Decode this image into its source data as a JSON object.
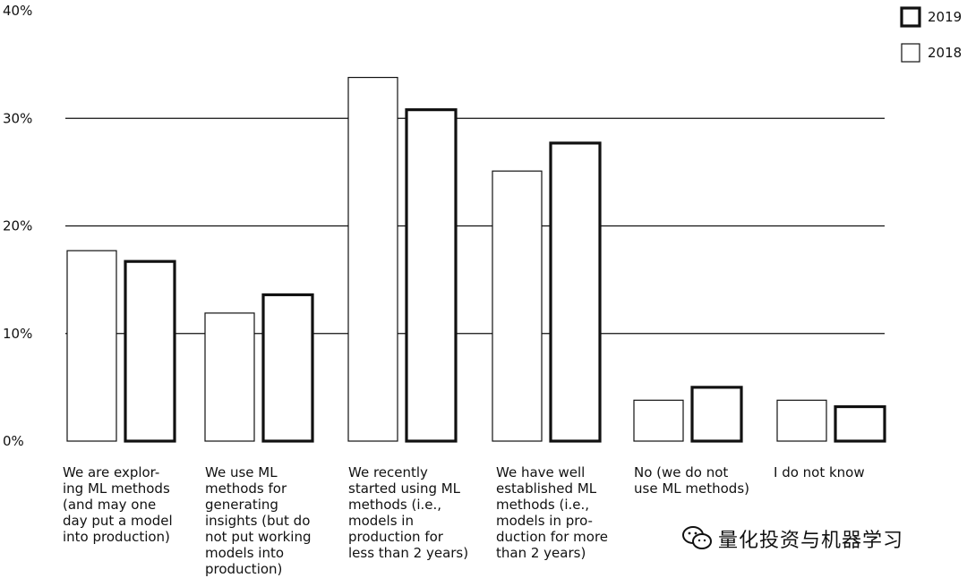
{
  "chart_data": {
    "type": "bar",
    "title": "",
    "xlabel": "",
    "ylabel": "",
    "ylim": [
      0,
      40
    ],
    "yticks": [
      "0%",
      "10%",
      "20%",
      "30%",
      "40%"
    ],
    "categories": [
      "We are explor-\ning ML methods\n(and may one\nday put a model\ninto production)",
      "We use ML\nmethods for\ngenerating\ninsights (but do\nnot put working\nmodels into\nproduction)",
      "We recently\nstarted using ML\nmethods (i.e.,\nmodels in\nproduction for\nless than 2 years)",
      "We have well\nestablished ML\nmethods (i.e.,\nmodels in pro-\nduction for more\nthan 2 years)",
      "No (we do not\nuse ML methods)",
      "I do not know"
    ],
    "series": [
      {
        "name": "2018",
        "values": [
          17.7,
          11.9,
          33.8,
          25.1,
          3.8,
          3.8
        ]
      },
      {
        "name": "2019",
        "values": [
          16.7,
          13.6,
          30.8,
          27.7,
          5.0,
          3.2
        ]
      }
    ],
    "grid": true,
    "legend": "top-right"
  },
  "watermark": {
    "text": "量化投资与机器学习",
    "icon": "wechat-icon"
  }
}
